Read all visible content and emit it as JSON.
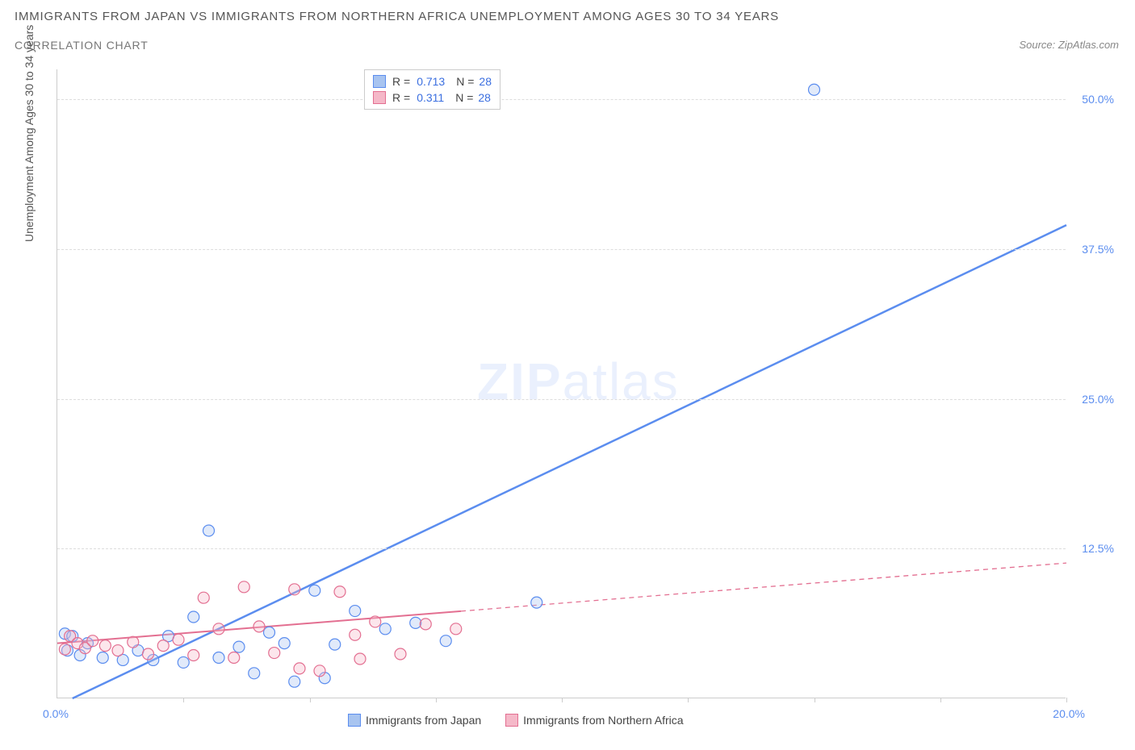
{
  "title": "IMMIGRANTS FROM JAPAN VS IMMIGRANTS FROM NORTHERN AFRICA UNEMPLOYMENT AMONG AGES 30 TO 34 YEARS",
  "subtitle": "CORRELATION CHART",
  "source": "Source: ZipAtlas.com",
  "watermark": "ZIPatlas",
  "y_axis_label": "Unemployment Among Ages 30 to 34 years",
  "chart": {
    "type": "scatter",
    "xlim": [
      0,
      20
    ],
    "ylim": [
      0,
      52.5
    ],
    "x_ticks": [
      0,
      2.5,
      5,
      7.5,
      10,
      12.5,
      15,
      17.5,
      20
    ],
    "x_tick_labels_shown": {
      "0": "0.0%",
      "20": "20.0%"
    },
    "y_ticks": [
      12.5,
      25.0,
      37.5,
      50.0
    ],
    "y_tick_labels": [
      "12.5%",
      "25.0%",
      "37.5%",
      "50.0%"
    ],
    "background_color": "#ffffff",
    "grid_color": "#dddddd",
    "axis_color": "#cccccc",
    "tick_label_color": "#5b8def",
    "marker_radius": 7,
    "marker_stroke_width": 1.2,
    "marker_fill_opacity": 0.35,
    "series": [
      {
        "name": "Immigrants from Japan",
        "color_fill": "#a8c4f0",
        "color_stroke": "#5b8def",
        "R": "0.713",
        "N": "28",
        "trend": {
          "x1": 0.3,
          "y1": 0,
          "x2": 20,
          "y2": 39.5,
          "solid_until_x": 20,
          "width": 2.5
        },
        "points": [
          [
            0.15,
            5.4
          ],
          [
            0.2,
            4.0
          ],
          [
            0.3,
            5.2
          ],
          [
            0.45,
            3.6
          ],
          [
            0.6,
            4.6
          ],
          [
            0.9,
            3.4
          ],
          [
            1.3,
            3.2
          ],
          [
            1.6,
            4.0
          ],
          [
            1.9,
            3.2
          ],
          [
            2.2,
            5.2
          ],
          [
            2.5,
            3.0
          ],
          [
            2.7,
            6.8
          ],
          [
            3.0,
            14.0
          ],
          [
            3.2,
            3.4
          ],
          [
            3.6,
            4.3
          ],
          [
            3.9,
            2.1
          ],
          [
            4.2,
            5.5
          ],
          [
            4.5,
            4.6
          ],
          [
            4.7,
            1.4
          ],
          [
            5.1,
            9.0
          ],
          [
            5.3,
            1.7
          ],
          [
            5.5,
            4.5
          ],
          [
            5.9,
            7.3
          ],
          [
            6.5,
            5.8
          ],
          [
            7.1,
            6.3
          ],
          [
            7.7,
            4.8
          ],
          [
            9.5,
            8.0
          ],
          [
            15.0,
            50.8
          ]
        ]
      },
      {
        "name": "Immigrants from Northern Africa",
        "color_fill": "#f5b8c8",
        "color_stroke": "#e36f91",
        "R": "0.311",
        "N": "28",
        "trend": {
          "x1": 0,
          "y1": 4.6,
          "x2": 20,
          "y2": 11.3,
          "solid_until_x": 8.0,
          "width": 2
        },
        "points": [
          [
            0.15,
            4.1
          ],
          [
            0.25,
            5.2
          ],
          [
            0.4,
            4.6
          ],
          [
            0.55,
            4.2
          ],
          [
            0.7,
            4.8
          ],
          [
            0.95,
            4.4
          ],
          [
            1.2,
            4.0
          ],
          [
            1.5,
            4.7
          ],
          [
            1.8,
            3.7
          ],
          [
            2.1,
            4.4
          ],
          [
            2.4,
            4.9
          ],
          [
            2.7,
            3.6
          ],
          [
            2.9,
            8.4
          ],
          [
            3.2,
            5.8
          ],
          [
            3.5,
            3.4
          ],
          [
            3.7,
            9.3
          ],
          [
            4.0,
            6.0
          ],
          [
            4.3,
            3.8
          ],
          [
            4.7,
            9.1
          ],
          [
            4.8,
            2.5
          ],
          [
            5.2,
            2.3
          ],
          [
            5.6,
            8.9
          ],
          [
            5.9,
            5.3
          ],
          [
            6.0,
            3.3
          ],
          [
            6.3,
            6.4
          ],
          [
            6.8,
            3.7
          ],
          [
            7.3,
            6.2
          ],
          [
            7.9,
            5.8
          ]
        ]
      }
    ]
  },
  "legend_bottom": [
    {
      "label": "Immigrants from Japan",
      "fill": "#a8c4f0",
      "stroke": "#5b8def"
    },
    {
      "label": "Immigrants from Northern Africa",
      "fill": "#f5b8c8",
      "stroke": "#e36f91"
    }
  ]
}
